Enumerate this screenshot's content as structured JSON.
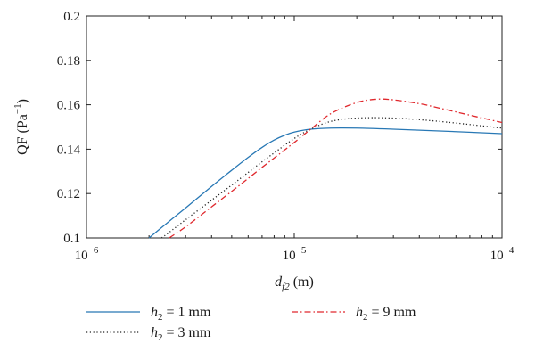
{
  "chart_data": {
    "type": "line",
    "x_scale": "log",
    "xlim": [
      1e-06,
      0.0001
    ],
    "ylim": [
      0.1,
      0.2
    ],
    "xlabel": "d_f2 (m)",
    "ylabel": "QF (Pa^-1)",
    "grid": false,
    "legend_placement": "bottom",
    "x_ticks": [
      {
        "value": 1e-06,
        "base": "10",
        "exp": "−6"
      },
      {
        "value": 1e-05,
        "base": "10",
        "exp": "−5"
      },
      {
        "value": 0.0001,
        "base": "10",
        "exp": "−4"
      }
    ],
    "y_ticks": [
      {
        "value": 0.1,
        "label": "0.1"
      },
      {
        "value": 0.12,
        "label": "0.12"
      },
      {
        "value": 0.14,
        "label": "0.14"
      },
      {
        "value": 0.16,
        "label": "0.16"
      },
      {
        "value": 0.18,
        "label": "0.18"
      },
      {
        "value": 0.2,
        "label": "0.2"
      }
    ],
    "series": [
      {
        "name": "h2 = 1 mm",
        "color": "#2878b5",
        "style": "solid",
        "x": [
          2e-06,
          2.5e-06,
          3e-06,
          4e-06,
          5e-06,
          6e-06,
          7e-06,
          8e-06,
          9e-06,
          1e-05,
          1.2e-05,
          1.5e-05,
          2e-05,
          3e-05,
          5e-05,
          0.0001
        ],
        "y": [
          0.1,
          0.1075,
          0.1135,
          0.1232,
          0.1305,
          0.1363,
          0.1408,
          0.1441,
          0.1463,
          0.1477,
          0.149,
          0.1495,
          0.1495,
          0.149,
          0.1482,
          0.147
        ]
      },
      {
        "name": "h2 = 3 mm",
        "color": "#222222",
        "style": "dotted",
        "x": [
          2.3e-06,
          2.5e-06,
          3e-06,
          4e-06,
          5e-06,
          6e-06,
          7e-06,
          8e-06,
          1e-05,
          1.2e-05,
          1.5e-05,
          2e-05,
          3e-05,
          5e-05,
          0.0001
        ],
        "y": [
          0.1,
          0.1025,
          0.1082,
          0.117,
          0.1238,
          0.1295,
          0.1343,
          0.1383,
          0.1448,
          0.149,
          0.1525,
          0.154,
          0.154,
          0.1525,
          0.1495
        ]
      },
      {
        "name": "h2 = 9 mm",
        "color": "#e0282d",
        "style": "dashdot",
        "x": [
          2.5e-06,
          3e-06,
          4e-06,
          5e-06,
          6e-06,
          7e-06,
          8e-06,
          1e-05,
          1.2e-05,
          1.5e-05,
          2e-05,
          2.5e-05,
          3e-05,
          4e-05,
          5e-05,
          7e-05,
          0.0001
        ],
        "y": [
          0.1,
          0.105,
          0.114,
          0.121,
          0.1268,
          0.1318,
          0.136,
          0.143,
          0.149,
          0.156,
          0.161,
          0.1625,
          0.1622,
          0.1605,
          0.1585,
          0.1553,
          0.152
        ]
      }
    ],
    "legend": [
      {
        "prefix": "h",
        "sub": "2",
        "rest": " = 1 mm",
        "color": "#2878b5",
        "style": "solid"
      },
      {
        "prefix": "h",
        "sub": "2",
        "rest": " = 3 mm",
        "color": "#222222",
        "style": "dotted"
      },
      {
        "prefix": "h",
        "sub": "2",
        "rest": " = 9 mm",
        "color": "#e0282d",
        "style": "dashdot"
      }
    ],
    "xlabel_parts": {
      "var": "d",
      "sub": "f2",
      "unit": " (m)"
    },
    "ylabel_parts": {
      "main": "QF (Pa",
      "sup": "−1",
      "close": ")"
    }
  }
}
